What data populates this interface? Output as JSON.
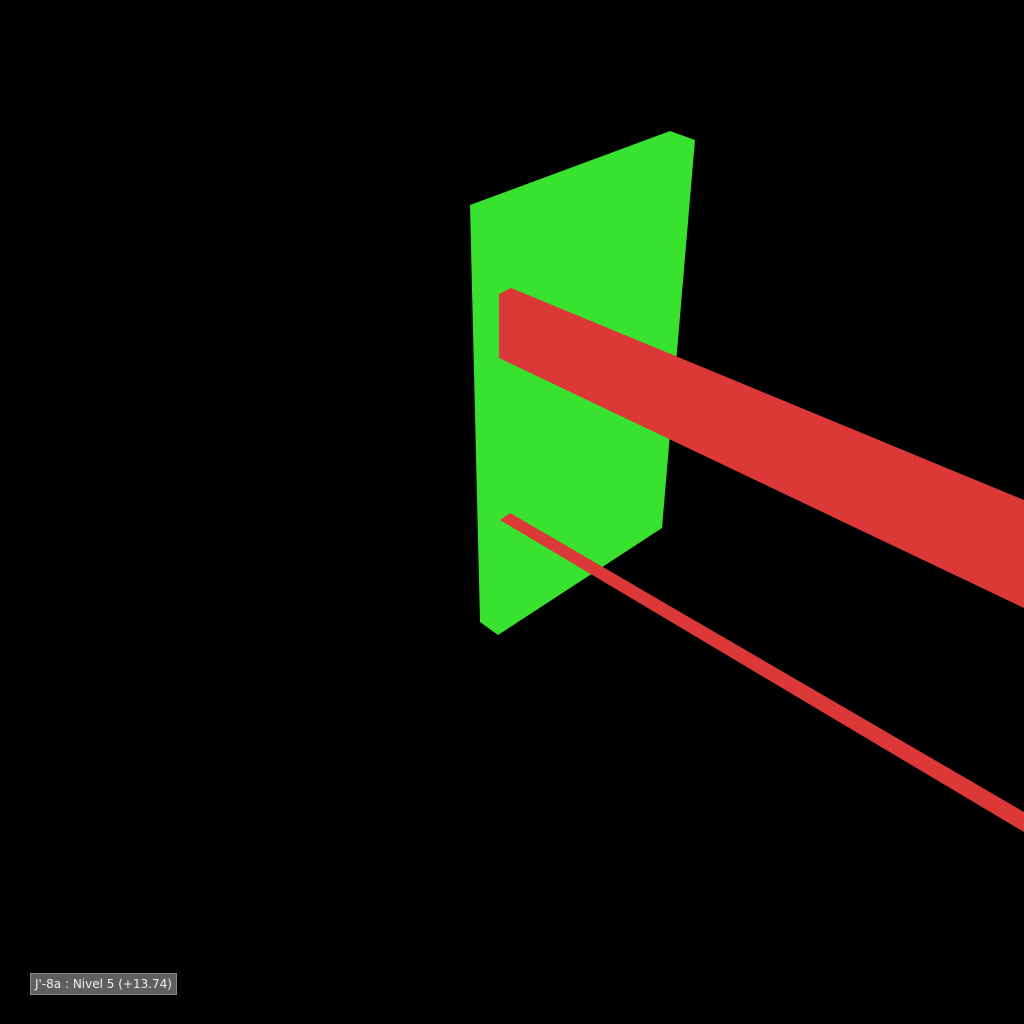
{
  "viewport": {
    "background_color": "#000000"
  },
  "scene": {
    "panel": {
      "color": "#38e22f"
    },
    "beam_upper": {
      "color": "#dd3838"
    },
    "beam_lower": {
      "color": "#dd3838"
    }
  },
  "level_label": {
    "text": "J'-8a : Nivel 5 (+13.74)"
  }
}
